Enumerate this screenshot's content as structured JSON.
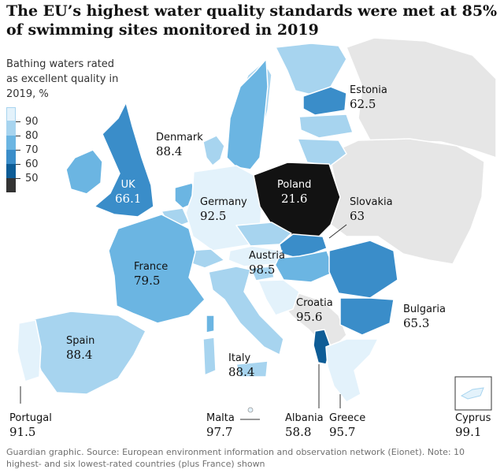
{
  "title": "The EU’s highest water quality standards were met at 85% of swimming sites monitored in 2019",
  "legend": {
    "title": "Bathing waters rated as excellent quality in 2019, %",
    "ticks": [
      "90",
      "80",
      "70",
      "60",
      "50"
    ],
    "colors": [
      "#e3f2fb",
      "#a7d4ef",
      "#6bb5e2",
      "#3a8dc9",
      "#0d5c96",
      "#333333"
    ]
  },
  "colors": {
    "no_data": "#e6e6e6",
    "sea": "#ffffff",
    "border": "#ffffff",
    "poland": "#121212"
  },
  "countries": [
    {
      "key": "estonia",
      "name": "Estonia",
      "value": "62.5"
    },
    {
      "key": "denmark",
      "name": "Denmark",
      "value": "88.4"
    },
    {
      "key": "uk",
      "name": "UK",
      "value": "66.1"
    },
    {
      "key": "poland",
      "name": "Poland",
      "value": "21.6"
    },
    {
      "key": "germany",
      "name": "Germany",
      "value": "92.5"
    },
    {
      "key": "slovakia",
      "name": "Slovakia",
      "value": "63"
    },
    {
      "key": "austria",
      "name": "Austria",
      "value": "98.5"
    },
    {
      "key": "france",
      "name": "France",
      "value": "79.5"
    },
    {
      "key": "croatia",
      "name": "Croatia",
      "value": "95.6"
    },
    {
      "key": "bulgaria",
      "name": "Bulgaria",
      "value": "65.3"
    },
    {
      "key": "spain",
      "name": "Spain",
      "value": "88.4"
    },
    {
      "key": "italy",
      "name": "Italy",
      "value": "88.4"
    },
    {
      "key": "portugal",
      "name": "Portugal",
      "value": "91.5"
    },
    {
      "key": "malta",
      "name": "Malta",
      "value": "97.7"
    },
    {
      "key": "albania",
      "name": "Albania",
      "value": "58.8"
    },
    {
      "key": "greece",
      "name": "Greece",
      "value": "95.7"
    },
    {
      "key": "cyprus",
      "name": "Cyprus",
      "value": "99.1"
    }
  ],
  "footer": "Guardian graphic. Source: European environment information and observation network (Eionet). Note: 10 highest- and six lowest-rated countries (plus France) shown"
}
